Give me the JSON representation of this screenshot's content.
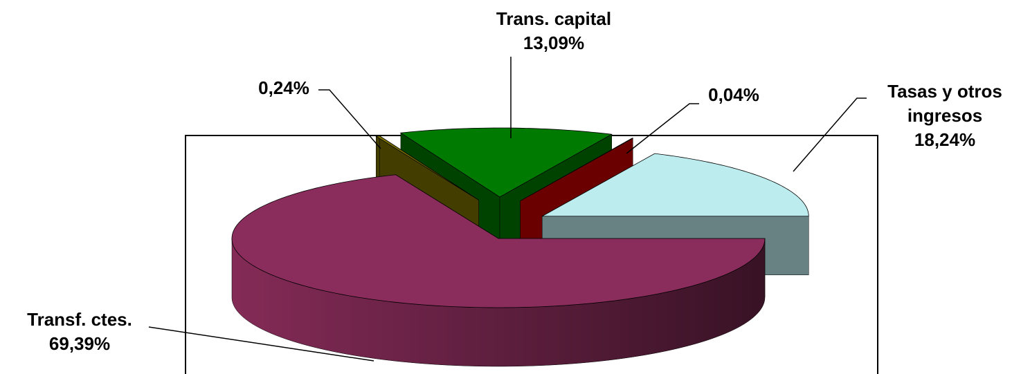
{
  "chart_data": {
    "type": "pie3d",
    "categories": [
      "Transf. ctes.",
      null,
      "Trans. capital",
      null,
      "Tasas y otros ingresos"
    ],
    "values": [
      69.39,
      0.24,
      13.09,
      0.04,
      18.24
    ],
    "value_labels": [
      "69,39%",
      "0,24%",
      "13,09%",
      "0,04%",
      "18,24%"
    ],
    "colors": [
      "#8b2d5c",
      "#7a7000",
      "#007a00",
      "#c00000",
      "#bdecee"
    ]
  }
}
